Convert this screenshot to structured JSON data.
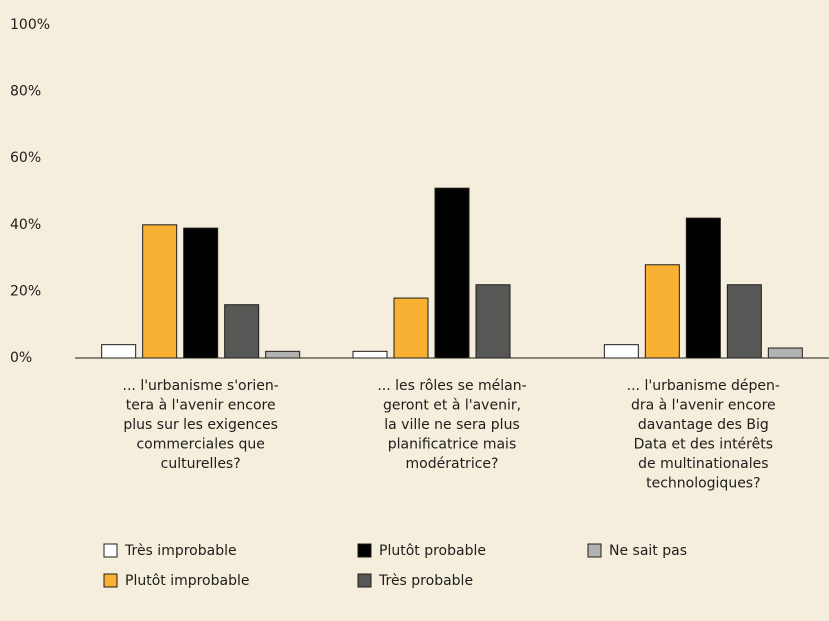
{
  "chart_data": {
    "type": "bar",
    "categories": [
      [
        "... l'urbanisme s'orien-",
        "tera à l'avenir encore",
        "plus sur les exigences",
        "commerciales que",
        "culturelles?"
      ],
      [
        "... les rôles se mélan-",
        "geront et à l'avenir,",
        "la ville ne sera plus",
        "planificatrice mais",
        "modératrice?"
      ],
      [
        "... l'urbanisme dépen-",
        "dra à l'avenir encore",
        "davantage des Big",
        "Data et des intérêts",
        "de multinationales",
        "technologiques?"
      ]
    ],
    "series": [
      {
        "name": "Très improbable",
        "color": "#ffffff",
        "values": [
          4,
          2,
          4
        ]
      },
      {
        "name": "Plutôt improbable",
        "color": "#f8b133",
        "values": [
          40,
          18,
          28
        ]
      },
      {
        "name": "Plutôt probable",
        "color": "#000000",
        "values": [
          39,
          51,
          42
        ]
      },
      {
        "name": "Très probable",
        "color": "#575756",
        "values": [
          16,
          22,
          22
        ]
      },
      {
        "name": "Ne sait pas",
        "color": "#b2b2b2",
        "values": [
          2,
          0,
          3
        ]
      }
    ],
    "ylim": [
      0,
      100
    ],
    "yticks": [
      {
        "value": 0,
        "label": "0%"
      },
      {
        "value": 20,
        "label": "20%"
      },
      {
        "value": 40,
        "label": "40%"
      },
      {
        "value": 60,
        "label": "60%"
      },
      {
        "value": 80,
        "label": "80%"
      },
      {
        "value": 100,
        "label": "100%"
      }
    ],
    "grid": false
  }
}
